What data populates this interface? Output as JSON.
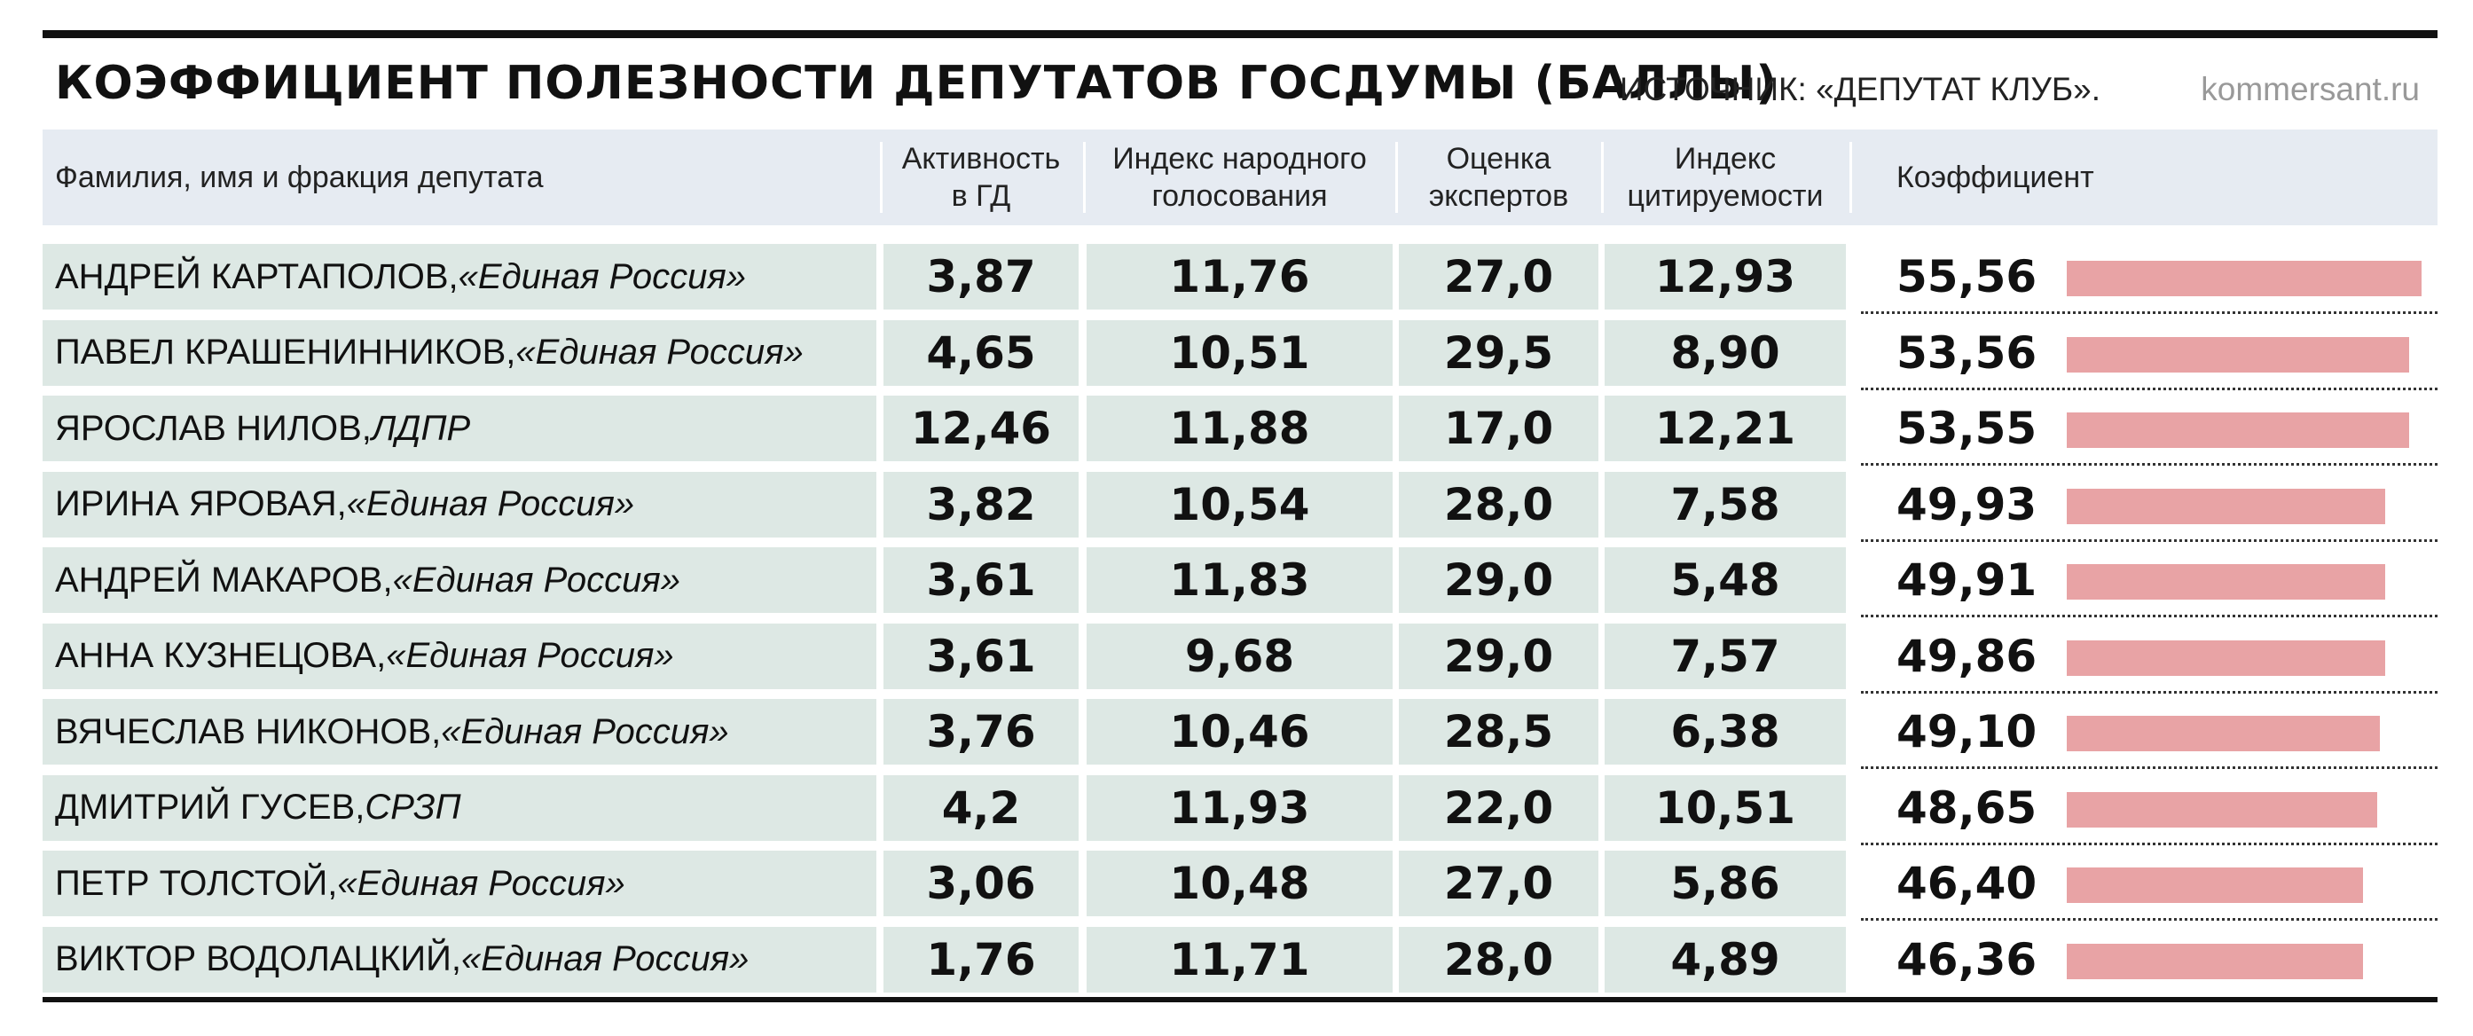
{
  "header": {
    "title": "КОЭФФИЦИЕНТ ПОЛЕЗНОСТИ ДЕПУТАТОВ ГОСДУМЫ (БАЛЛЫ)",
    "source": "ИСТОЧНИК: «ДЕПУТАТ КЛУБ».",
    "site": "kommersant.ru"
  },
  "columns": {
    "name": "Фамилия, имя и фракция депутата",
    "activity": "Активность\nв ГД",
    "popular_vote": "Индекс народного\nголосования",
    "experts": "Оценка\nэкспертов",
    "citation": "Индекс\nцитируемости",
    "coefficient": "Коэффициент"
  },
  "colors": {
    "bar": "#e8a3a5",
    "row_background": "#dde8e4",
    "header_background": "#e6ebf2"
  },
  "chart_data": {
    "type": "table",
    "title": "КОЭФФИЦИЕНТ ПОЛЕЗНОСТИ ДЕПУТАТОВ ГОСДУМЫ (БАЛЛЫ)",
    "bar_column": "coefficient",
    "rows": [
      {
        "name": "АНДРЕЙ КАРТАПОЛОВ,",
        "faction": "«Единая Россия»",
        "activity": "3,87",
        "popular_vote": "11,76",
        "experts": "27,0",
        "citation": "12,93",
        "coefficient": "55,56",
        "coefficient_value": 55.56
      },
      {
        "name": "ПАВЕЛ КРАШЕНИННИКОВ,",
        "faction": "«Единая Россия»",
        "activity": "4,65",
        "popular_vote": "10,51",
        "experts": "29,5",
        "citation": "8,90",
        "coefficient": "53,56",
        "coefficient_value": 53.56
      },
      {
        "name": "ЯРОСЛАВ НИЛОВ,",
        "faction": "ЛДПР",
        "activity": "12,46",
        "popular_vote": "11,88",
        "experts": "17,0",
        "citation": "12,21",
        "coefficient": "53,55",
        "coefficient_value": 53.55
      },
      {
        "name": "ИРИНА ЯРОВАЯ,",
        "faction": "«Единая Россия»",
        "activity": "3,82",
        "popular_vote": "10,54",
        "experts": "28,0",
        "citation": "7,58",
        "coefficient": "49,93",
        "coefficient_value": 49.93
      },
      {
        "name": "АНДРЕЙ МАКАРОВ,",
        "faction": "«Единая Россия»",
        "activity": "3,61",
        "popular_vote": "11,83",
        "experts": "29,0",
        "citation": "5,48",
        "coefficient": "49,91",
        "coefficient_value": 49.91
      },
      {
        "name": "АННА КУЗНЕЦОВА,",
        "faction": "«Единая Россия»",
        "activity": "3,61",
        "popular_vote": "9,68",
        "experts": "29,0",
        "citation": "7,57",
        "coefficient": "49,86",
        "coefficient_value": 49.86
      },
      {
        "name": "ВЯЧЕСЛАВ НИКОНОВ,",
        "faction": "«Единая Россия»",
        "activity": "3,76",
        "popular_vote": "10,46",
        "experts": "28,5",
        "citation": "6,38",
        "coefficient": "49,10",
        "coefficient_value": 49.1
      },
      {
        "name": "ДМИТРИЙ ГУСЕВ,",
        "faction": "СРЗП",
        "activity": "4,2",
        "popular_vote": "11,93",
        "experts": "22,0",
        "citation": "10,51",
        "coefficient": "48,65",
        "coefficient_value": 48.65
      },
      {
        "name": "ПЕТР ТОЛСТОЙ,",
        "faction": "«Единая Россия»",
        "activity": "3,06",
        "popular_vote": "10,48",
        "experts": "27,0",
        "citation": "5,86",
        "coefficient": "46,40",
        "coefficient_value": 46.4
      },
      {
        "name": "ВИКТОР ВОДОЛАЦКИЙ,",
        "faction": "«Единая Россия»",
        "activity": "1,76",
        "popular_vote": "11,71",
        "experts": "28,0",
        "citation": "4,89",
        "coefficient": "46,36",
        "coefficient_value": 46.36
      }
    ]
  }
}
